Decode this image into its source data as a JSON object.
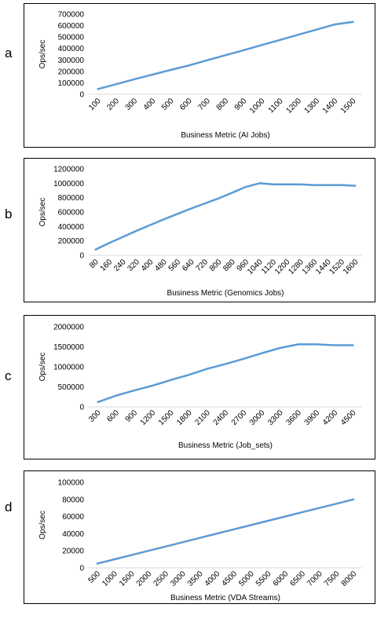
{
  "chart_data": [
    {
      "panel": "a",
      "type": "line",
      "xlabel": "Business Metric (AI Jobs)",
      "ylabel": "Ops/sec",
      "ylim": [
        0,
        700000
      ],
      "yticks": [
        0,
        100000,
        200000,
        300000,
        400000,
        500000,
        600000,
        700000
      ],
      "categories": [
        "100",
        "200",
        "300",
        "400",
        "500",
        "600",
        "700",
        "800",
        "900",
        "1000",
        "1100",
        "1200",
        "1300",
        "1400",
        "1500"
      ],
      "series": [
        {
          "values": [
            45000,
            88000,
            131000,
            172000,
            213000,
            252000,
            297000,
            341000,
            385000,
            430000,
            475000,
            520000,
            565000,
            610000,
            632000
          ]
        }
      ],
      "grid": false,
      "line_color": "#5b9bd5"
    },
    {
      "panel": "b",
      "type": "line",
      "xlabel": "Business Metric (Genomics Jobs)",
      "ylabel": "Ops/sec",
      "ylim": [
        0,
        1200000
      ],
      "yticks": [
        0,
        200000,
        400000,
        600000,
        800000,
        1000000,
        1200000
      ],
      "categories": [
        "80",
        "160",
        "240",
        "320",
        "400",
        "480",
        "560",
        "640",
        "720",
        "800",
        "880",
        "960",
        "1040",
        "1120",
        "1200",
        "1280",
        "1360",
        "1440",
        "1520",
        "1600"
      ],
      "series": [
        {
          "values": [
            80000,
            170000,
            255000,
            340000,
            420000,
            500000,
            575000,
            650000,
            720000,
            790000,
            870000,
            950000,
            1000000,
            985000,
            985000,
            985000,
            975000,
            975000,
            975000,
            965000
          ]
        }
      ],
      "grid": false,
      "line_color": "#5b9bd5"
    },
    {
      "panel": "c",
      "type": "line",
      "xlabel": "Business Metric (Job_sets)",
      "ylabel": "Ops/sec",
      "ylim": [
        0,
        2000000
      ],
      "yticks": [
        0,
        500000,
        1000000,
        1500000,
        2000000
      ],
      "categories": [
        "300",
        "600",
        "900",
        "1200",
        "1500",
        "1800",
        "2100",
        "2400",
        "2700",
        "3000",
        "3300",
        "3600",
        "3900",
        "4200",
        "4500"
      ],
      "series": [
        {
          "values": [
            120000,
            280000,
            410000,
            530000,
            670000,
            800000,
            950000,
            1070000,
            1200000,
            1340000,
            1470000,
            1560000,
            1560000,
            1540000,
            1540000
          ]
        }
      ],
      "grid": false,
      "line_color": "#5b9bd5"
    },
    {
      "panel": "d",
      "type": "line",
      "xlabel": "Business Metric (VDA Streams)",
      "ylabel": "Ops/sec",
      "ylim": [
        0,
        100000
      ],
      "yticks": [
        0,
        20000,
        40000,
        60000,
        80000,
        100000
      ],
      "categories": [
        "500",
        "1000",
        "1500",
        "2000",
        "2500",
        "3000",
        "3500",
        "4000",
        "4500",
        "5000",
        "5500",
        "6000",
        "6500",
        "7000",
        "7500",
        "8000"
      ],
      "series": [
        {
          "values": [
            5000,
            10000,
            15000,
            20000,
            25000,
            30000,
            35000,
            40000,
            45000,
            50000,
            55000,
            60000,
            65000,
            70000,
            75000,
            80000
          ]
        }
      ],
      "grid": false,
      "line_color": "#5b9bd5"
    }
  ]
}
